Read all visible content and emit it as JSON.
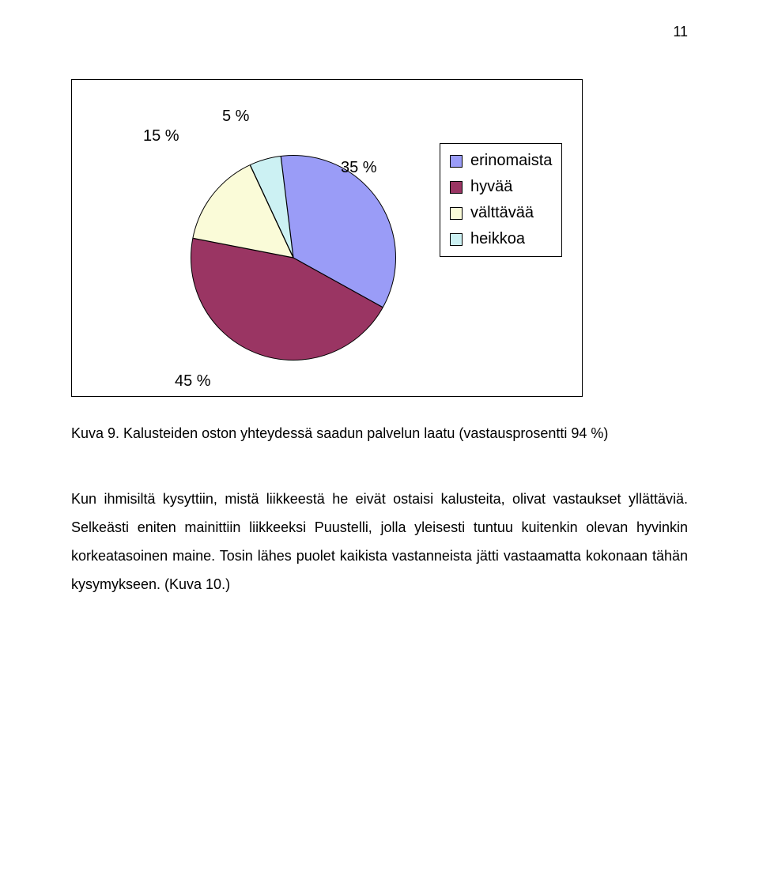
{
  "page_number": "11",
  "chart": {
    "type": "pie",
    "labels": [
      "15 %",
      "5 %",
      "35 %",
      "45 %"
    ],
    "values_pct": [
      15,
      5,
      35,
      45
    ],
    "slice_colors": [
      "#fafbd8",
      "#ccf1f3",
      "#9a9cf7",
      "#9a3563"
    ],
    "slice_edge_color": "#000000",
    "legend_items": [
      "erinomaista",
      "hyvää",
      "välttävää",
      "heikkoa"
    ],
    "legend_colors": [
      "#9a9cf7",
      "#9a3563",
      "#fafbd8",
      "#ccf1f3"
    ],
    "legend_border_color": "#000000",
    "label_fontsize": 20,
    "legend_fontsize": 20,
    "background_color": "#ffffff",
    "chart_border_color": "#000000"
  },
  "caption": "Kuva 9. Kalusteiden oston yhteydessä saadun palvelun laatu (vastausprosentti 94 %)",
  "body": "Kun ihmisiltä kysyttiin, mistä liikkeestä he eivät ostaisi kalusteita, olivat vastaukset yllättäviä. Selkeästi eniten mainittiin liikkeeksi Puustelli, jolla yleisesti tuntuu kuitenkin olevan hyvinkin korkeatasoinen maine. Tosin lähes puolet kaikista vastanneista jätti vastaamatta kokonaan tähän kysymykseen. (Kuva 10.)"
}
